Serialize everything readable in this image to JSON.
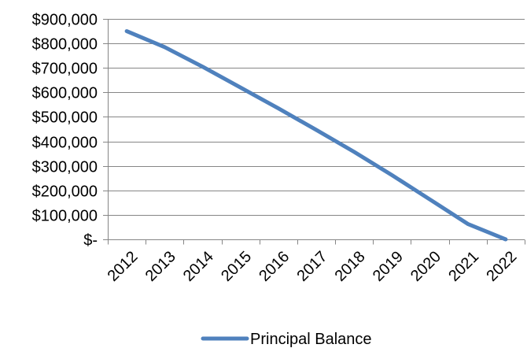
{
  "chart_data": {
    "type": "line",
    "x_categories": [
      "2012",
      "2013",
      "2014",
      "2015",
      "2016",
      "2017",
      "2018",
      "2019",
      "2020",
      "2021",
      "2022"
    ],
    "y_tick_labels": [
      "$-",
      "$100,000",
      "$200,000",
      "$300,000",
      "$400,000",
      "$500,000",
      "$600,000",
      "$700,000",
      "$800,000",
      "$900,000"
    ],
    "y_tick_values": [
      0,
      100000,
      200000,
      300000,
      400000,
      500000,
      600000,
      700000,
      800000,
      900000
    ],
    "ylim": [
      0,
      900000
    ],
    "grid": true,
    "legend_position": "bottom-center",
    "series": [
      {
        "name": "Principal Balance",
        "color": "#4f81bd",
        "values": [
          850000,
          785000,
          705000,
          620000,
          535000,
          447000,
          357000,
          262000,
          163000,
          63000,
          0
        ]
      }
    ]
  }
}
